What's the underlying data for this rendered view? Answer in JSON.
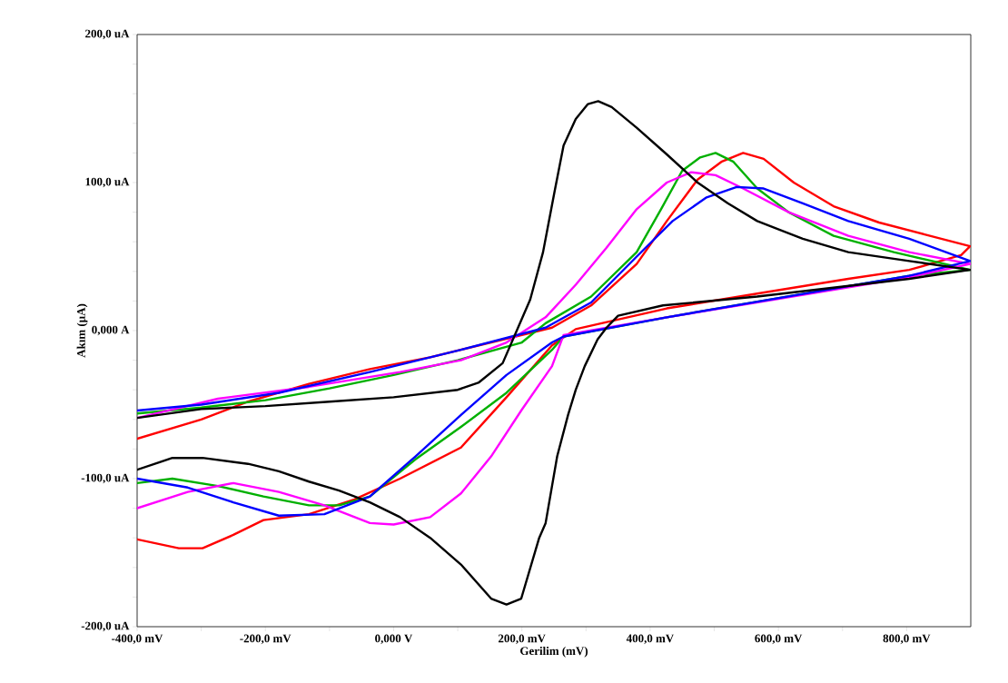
{
  "chart_data": {
    "type": "line",
    "xlabel": "Gerilim (mV)",
    "ylabel": "Akım (µA)",
    "xlim": [
      -400,
      900
    ],
    "ylim": [
      -200,
      200
    ],
    "xticks": [
      {
        "value": -400,
        "label": "-400,0 mV"
      },
      {
        "value": -300,
        "label": null
      },
      {
        "value": -200,
        "label": "-200,0 mV"
      },
      {
        "value": -100,
        "label": null
      },
      {
        "value": 0,
        "label": "0,000 V"
      },
      {
        "value": 100,
        "label": null
      },
      {
        "value": 200,
        "label": "200,0 mV"
      },
      {
        "value": 300,
        "label": null
      },
      {
        "value": 400,
        "label": "400,0 mV"
      },
      {
        "value": 500,
        "label": null
      },
      {
        "value": 600,
        "label": "600,0 mV"
      },
      {
        "value": 700,
        "label": null
      },
      {
        "value": 800,
        "label": "800,0 mV"
      }
    ],
    "yticks": [
      {
        "value": -200,
        "label": "-200,0 uA"
      },
      {
        "value": -180,
        "label": null
      },
      {
        "value": -160,
        "label": null
      },
      {
        "value": -140,
        "label": null
      },
      {
        "value": -120,
        "label": null
      },
      {
        "value": -100,
        "label": "-100,0 uA"
      },
      {
        "value": -80,
        "label": null
      },
      {
        "value": -60,
        "label": null
      },
      {
        "value": -40,
        "label": null
      },
      {
        "value": -20,
        "label": null
      },
      {
        "value": 0,
        "label": "0,000 A"
      },
      {
        "value": 20,
        "label": null
      },
      {
        "value": 40,
        "label": null
      },
      {
        "value": 60,
        "label": null
      },
      {
        "value": 80,
        "label": null
      },
      {
        "value": 100,
        "label": "100,0 uA"
      },
      {
        "value": 120,
        "label": null
      },
      {
        "value": 140,
        "label": null
      },
      {
        "value": 160,
        "label": null
      },
      {
        "value": 180,
        "label": null
      },
      {
        "value": 200,
        "label": "200,0 uA"
      }
    ],
    "series": [
      {
        "color": "#ff0000",
        "x": [
          -400,
          -300,
          -227,
          -132,
          -37,
          57,
          152,
          247,
          308,
          379,
          426,
          474,
          511,
          545,
          577,
          624,
          686,
          757,
          828,
          899,
          885,
          804,
          709,
          567,
          426,
          284,
          247,
          176,
          105,
          10,
          -61,
          -132,
          -203,
          -250,
          -298,
          -335,
          -400
        ],
        "values": [
          -73,
          -60,
          -48,
          -36,
          -26,
          -18,
          -8,
          2,
          17,
          45,
          74,
          102,
          114,
          120,
          116,
          100,
          84,
          73,
          65,
          57,
          51,
          41,
          35,
          25,
          15,
          1,
          -10,
          -45,
          -79,
          -100,
          -114,
          -124,
          -128,
          -138,
          -147,
          -147,
          -141
        ]
      },
      {
        "color": "#00b000",
        "x": [
          -400,
          -300,
          -200,
          -100,
          0,
          100,
          200,
          237,
          308,
          379,
          417,
          450,
          478,
          502,
          530,
          567,
          616,
          686,
          780,
          899,
          804,
          426,
          265,
          247,
          176,
          105,
          34,
          -37,
          -85,
          -132,
          -203,
          -274,
          -345,
          -400
        ],
        "values": [
          -56,
          -52,
          -47,
          -39,
          -30,
          -20,
          -8,
          5,
          23,
          53,
          82,
          108,
          117,
          120,
          114,
          96,
          80,
          64,
          53,
          41,
          37,
          9,
          -4,
          -13,
          -42,
          -65,
          -87,
          -112,
          -118,
          -118,
          -112,
          -105,
          -100,
          -103
        ]
      },
      {
        "color": "#ff00ff",
        "x": [
          -400,
          -274,
          -132,
          10,
          105,
          176,
          237,
          284,
          332,
          379,
          426,
          464,
          502,
          545,
          616,
          709,
          804,
          899,
          804,
          426,
          265,
          247,
          199,
          152,
          105,
          57,
          0,
          -37,
          -108,
          -179,
          -250,
          -321,
          -400
        ],
        "values": [
          -59,
          -46,
          -38,
          -28,
          -20,
          -8,
          9,
          31,
          56,
          82,
          100,
          107,
          105,
          96,
          80,
          64,
          53,
          45,
          36,
          9,
          -3,
          -24,
          -54,
          -85,
          -110,
          -126,
          -131,
          -130,
          -118,
          -109,
          -103,
          -109,
          -120
        ]
      },
      {
        "color": "#0000ff",
        "x": [
          -400,
          -300,
          -179,
          -37,
          105,
          237,
          308,
          379,
          435,
          488,
          535,
          577,
          638,
          709,
          804,
          899,
          804,
          426,
          265,
          247,
          176,
          105,
          34,
          -37,
          -108,
          -179,
          -250,
          -321,
          -400
        ],
        "values": [
          -54,
          -50,
          -42,
          -28,
          -13,
          2,
          19,
          50,
          74,
          90,
          97,
          96,
          86,
          74,
          62,
          47,
          37,
          9,
          -4,
          -8,
          -30,
          -57,
          -85,
          -112,
          -124,
          -125,
          -116,
          -106,
          -100
        ]
      },
      {
        "color": "#000000",
        "x": [
          -400,
          -300,
          -200,
          -100,
          0,
          100,
          133,
          170,
          194,
          213,
          233,
          251,
          265,
          284,
          303,
          319,
          340,
          379,
          426,
          474,
          521,
          567,
          638,
          709,
          804,
          899,
          804,
          567,
          420,
          350,
          332,
          318,
          298,
          284,
          272,
          255,
          237,
          227,
          199,
          176,
          152,
          105,
          57,
          10,
          -37,
          -85,
          -132,
          -179,
          -227,
          -298,
          -345,
          -400
        ],
        "values": [
          -59,
          -53,
          -51,
          -48,
          -45,
          -40,
          -35,
          -22,
          2,
          21,
          53,
          94,
          125,
          143,
          153,
          155,
          151,
          137,
          119,
          100,
          86,
          74,
          62,
          53,
          47,
          41,
          35,
          23,
          17,
          10,
          2,
          -6,
          -24,
          -40,
          -57,
          -85,
          -130,
          -140,
          -181,
          -185,
          -181,
          -158,
          -140,
          -126,
          -116,
          -108,
          -102,
          -95,
          -90,
          -86,
          -86,
          -94
        ]
      }
    ]
  }
}
